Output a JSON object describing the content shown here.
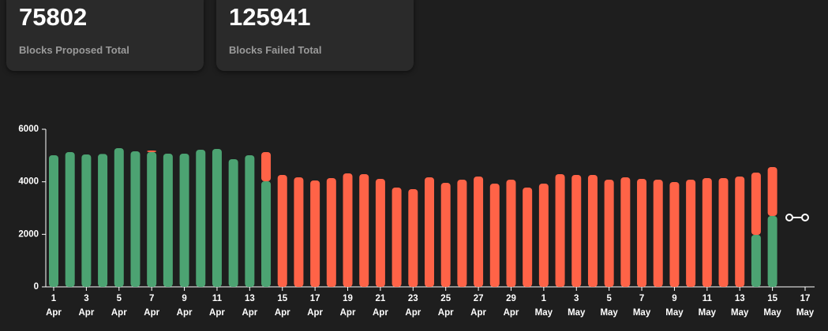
{
  "cards": [
    {
      "value": "75802",
      "label": "Blocks Proposed Total"
    },
    {
      "value": "125941",
      "label": "Blocks Failed Total"
    }
  ],
  "chart_data": {
    "type": "stacked-bar",
    "categories": [
      "1 Apr",
      null,
      "3 Apr",
      null,
      "5 Apr",
      null,
      "7 Apr",
      null,
      "9 Apr",
      null,
      "11 Apr",
      null,
      "13 Apr",
      null,
      "15 Apr",
      null,
      "17 Apr",
      null,
      "19 Apr",
      null,
      "21 Apr",
      null,
      "23 Apr",
      null,
      "25 Apr",
      null,
      "27 Apr",
      null,
      "29 Apr",
      null,
      "1 May",
      null,
      "3 May",
      null,
      "5 May",
      null,
      "7 May",
      null,
      "9 May",
      null,
      "11 May",
      null,
      "13 May",
      null,
      "15 May",
      null,
      "17 May"
    ],
    "series": [
      {
        "color": "#4ca372",
        "values": [
          5010,
          5130,
          5040,
          5060,
          5280,
          5160,
          5130,
          5070,
          5070,
          5220,
          5250,
          4860,
          5010,
          4020,
          0,
          0,
          0,
          0,
          0,
          0,
          0,
          0,
          0,
          0,
          0,
          0,
          0,
          0,
          0,
          0,
          0,
          0,
          0,
          0,
          0,
          0,
          0,
          0,
          0,
          0,
          0,
          0,
          0,
          1980,
          2700,
          null,
          null
        ]
      },
      {
        "color": "#ff6347",
        "values": [
          0,
          0,
          0,
          0,
          0,
          0,
          60,
          0,
          0,
          0,
          0,
          0,
          0,
          1110,
          4260,
          4170,
          4050,
          4140,
          4320,
          4290,
          4110,
          3780,
          3720,
          4170,
          3960,
          4080,
          4200,
          3930,
          4080,
          3780,
          3930,
          4290,
          4260,
          4260,
          4080,
          4170,
          4110,
          4080,
          3990,
          4080,
          4140,
          4140,
          4200,
          2370,
          1860,
          null,
          null
        ]
      }
    ],
    "ylim": [
      0,
      6000
    ],
    "yticks": [
      0,
      2000,
      4000,
      6000
    ]
  }
}
